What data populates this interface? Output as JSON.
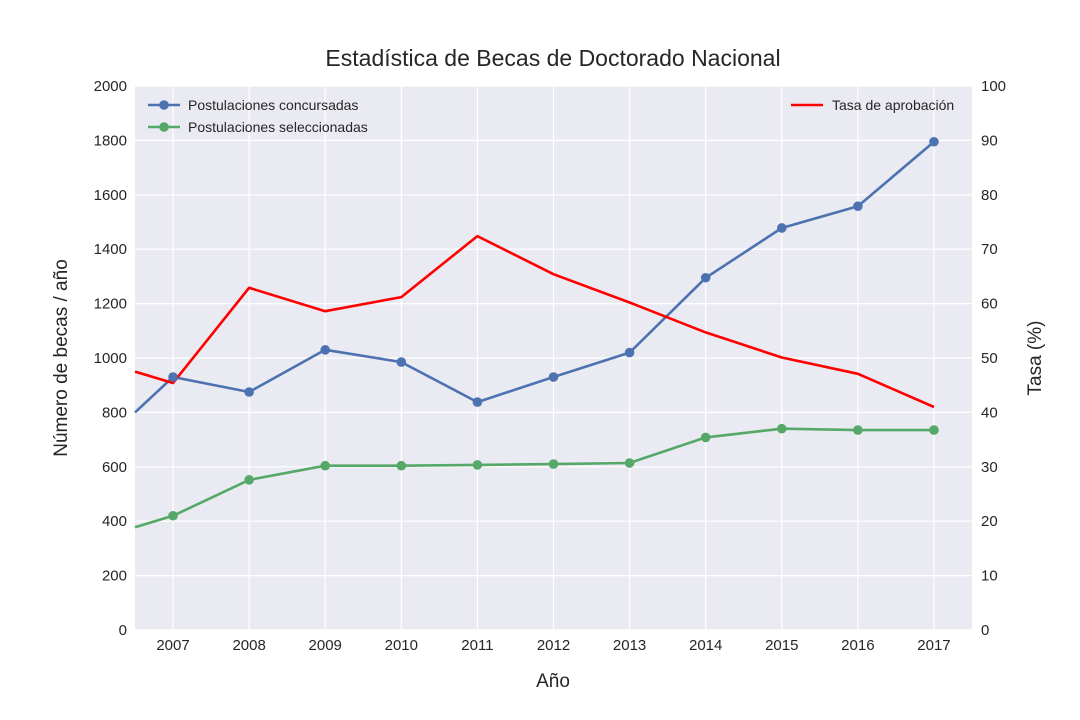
{
  "chart_data": {
    "type": "line",
    "title": "Estadística de Becas de Doctorado Nacional",
    "xlabel": "Año",
    "ylabel": "Número de becas / año",
    "ylabel_right": "Tasa (%)",
    "x_categories": [
      "2007",
      "2008",
      "2009",
      "2010",
      "2011",
      "2012",
      "2013",
      "2014",
      "2015",
      "2016",
      "2017"
    ],
    "x_start": 2006.5,
    "x_end": 2017.5,
    "ylim": [
      0,
      2000
    ],
    "yticks": [
      0,
      200,
      400,
      600,
      800,
      1000,
      1200,
      1400,
      1600,
      1800,
      2000
    ],
    "ylim_right": [
      0,
      100
    ],
    "yticks_right": [
      0,
      10,
      20,
      30,
      40,
      50,
      60,
      70,
      80,
      90,
      100
    ],
    "grid": true,
    "background": "#eaeaf2",
    "series": [
      {
        "name": "Postulaciones concursadas",
        "axis": "left",
        "color": "#4c72b0",
        "markers": true,
        "x": [
          2006.5,
          2007,
          2008,
          2009,
          2010,
          2011,
          2012,
          2013,
          2014,
          2015,
          2016,
          2017
        ],
        "values": [
          800,
          930,
          875,
          1030,
          985,
          838,
          930,
          1020,
          1295,
          1478,
          1558,
          1795
        ]
      },
      {
        "name": "Postulaciones seleccionadas",
        "axis": "left",
        "color": "#55a868",
        "markers": true,
        "x": [
          2006.5,
          2007,
          2008,
          2009,
          2010,
          2011,
          2012,
          2013,
          2014,
          2015,
          2016,
          2017
        ],
        "values": [
          378,
          420,
          552,
          604,
          604,
          607,
          610,
          614,
          708,
          740,
          735,
          735
        ]
      },
      {
        "name": "Tasa de aprobación",
        "axis": "right",
        "color": "#ff0000",
        "markers": false,
        "x": [
          2006.5,
          2007,
          2008,
          2009,
          2010,
          2011,
          2012,
          2013,
          2014,
          2015,
          2016,
          2017
        ],
        "values": [
          47.5,
          45.4,
          62.9,
          58.6,
          61.2,
          72.4,
          65.4,
          60.2,
          54.7,
          50.1,
          47.1,
          41.0
        ]
      }
    ],
    "legend_left": {
      "position": "upper-left",
      "entries": [
        "Postulaciones concursadas",
        "Postulaciones seleccionadas"
      ]
    },
    "legend_right": {
      "position": "upper-right",
      "entries": [
        "Tasa de aprobación"
      ]
    }
  }
}
